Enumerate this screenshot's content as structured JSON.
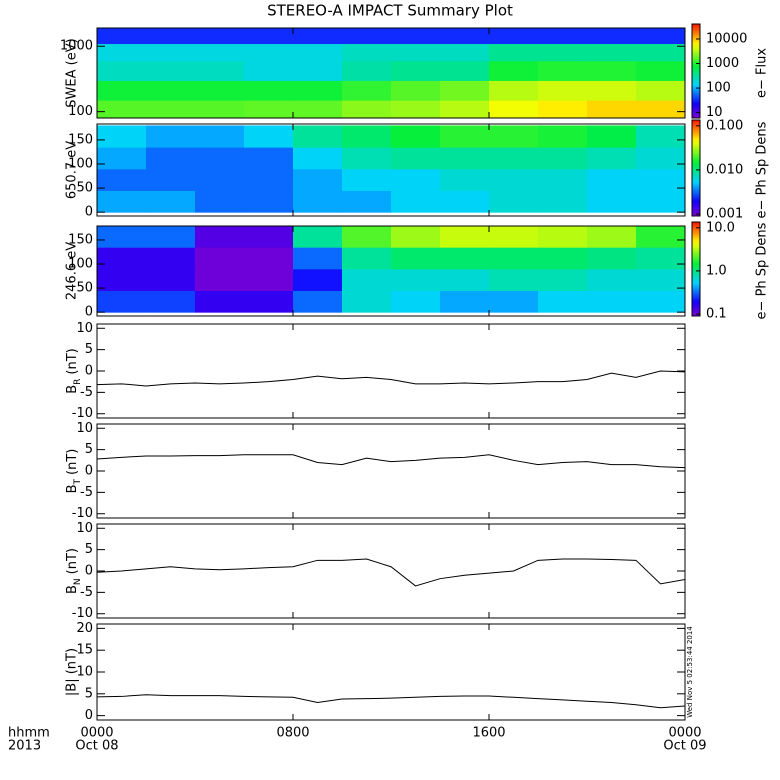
{
  "chart_data": [
    {
      "type": "heatmap",
      "title": "STEREO-A IMPACT Summary Plot",
      "ylabel": "SWEA (eV)",
      "ylog": true,
      "xlim": [
        0,
        24
      ],
      "ylim": [
        80,
        1900
      ],
      "yticks": [
        100,
        1000
      ],
      "x_edges": [
        0,
        2,
        4,
        6,
        8,
        10,
        12,
        14,
        16,
        18,
        20,
        22,
        24
      ],
      "y_edges": [
        80,
        150,
        300,
        600,
        1100,
        1900
      ],
      "z": [
        [
          1200,
          1200,
          1200,
          1300,
          1300,
          1800,
          2000,
          2500,
          4000,
          5000,
          6000,
          6000
        ],
        [
          700,
          700,
          700,
          700,
          700,
          900,
          1200,
          1500,
          2500,
          3000,
          3000,
          2500
        ],
        [
          200,
          200,
          200,
          150,
          150,
          250,
          300,
          300,
          700,
          800,
          800,
          700
        ],
        [
          150,
          150,
          150,
          150,
          150,
          200,
          200,
          200,
          300,
          300,
          300,
          300
        ],
        [
          30,
          30,
          30,
          30,
          30,
          30,
          30,
          30,
          30,
          30,
          30,
          30
        ]
      ],
      "clog": true,
      "clim": [
        6,
        28000
      ],
      "cticks": [
        10,
        100,
        1000,
        10000
      ],
      "clabel": "e− Flux"
    },
    {
      "type": "heatmap",
      "ylabel": "650.7 eV",
      "xlim": [
        0,
        24
      ],
      "ylim": [
        -8,
        183
      ],
      "yticks": [
        0,
        50,
        100,
        150
      ],
      "x_edges": [
        0,
        2,
        4,
        6,
        8,
        10,
        12,
        14,
        16,
        18,
        20,
        22,
        24
      ],
      "y_edges": [
        0,
        45,
        90,
        135,
        180
      ],
      "z": [
        [
          0.004,
          0.004,
          0.003,
          0.003,
          0.004,
          0.004,
          0.005,
          0.005,
          0.006,
          0.006,
          0.005,
          0.005
        ],
        [
          0.003,
          0.003,
          0.003,
          0.003,
          0.004,
          0.005,
          0.005,
          0.006,
          0.006,
          0.006,
          0.005,
          0.005
        ],
        [
          0.004,
          0.003,
          0.003,
          0.003,
          0.005,
          0.007,
          0.008,
          0.008,
          0.008,
          0.008,
          0.007,
          0.006
        ],
        [
          0.005,
          0.004,
          0.004,
          0.005,
          0.008,
          0.01,
          0.013,
          0.015,
          0.015,
          0.014,
          0.012,
          0.007
        ]
      ],
      "clog": true,
      "clim": [
        0.0009,
        0.11
      ],
      "cticks": [
        {
          "value": 0.1,
          "label": "0.100"
        },
        {
          "value": 0.01,
          "label": "0.010"
        },
        0.001
      ],
      "clabel": "e− Ph Sp Dens"
    },
    {
      "type": "heatmap",
      "ylabel": "246.6 eV",
      "xlim": [
        0,
        24
      ],
      "ylim": [
        -8,
        179
      ],
      "yticks": [
        0,
        50,
        100,
        150
      ],
      "x_edges": [
        0,
        2,
        4,
        6,
        8,
        10,
        12,
        14,
        16,
        18,
        20,
        22,
        24
      ],
      "y_edges": [
        0,
        45,
        90,
        135,
        180
      ],
      "z": [
        [
          0.25,
          0.25,
          0.15,
          0.15,
          0.3,
          0.6,
          0.5,
          0.4,
          0.4,
          0.5,
          0.5,
          0.5
        ],
        [
          0.15,
          0.15,
          0.1,
          0.1,
          0.2,
          0.6,
          0.6,
          0.6,
          0.7,
          0.7,
          0.6,
          0.6
        ],
        [
          0.15,
          0.15,
          0.1,
          0.1,
          0.3,
          0.8,
          1.0,
          1.0,
          1.0,
          1.0,
          0.9,
          0.8
        ],
        [
          0.3,
          0.3,
          0.12,
          0.12,
          0.8,
          1.8,
          2.5,
          3,
          3,
          2.8,
          2.5,
          1.5
        ]
      ],
      "clog": true,
      "clim": [
        0.09,
        11
      ],
      "cticks": [
        {
          "value": 10,
          "label": "10.0"
        },
        {
          "value": 1,
          "label": "1.0"
        },
        0.1
      ],
      "clabel": "e− Ph Sp Dens"
    },
    {
      "type": "line",
      "ylabel": {
        "base": "B",
        "sub": "R",
        "unit": "(nT)"
      },
      "xlim": [
        0,
        24
      ],
      "ylim": [
        -11,
        11
      ],
      "yticks": [
        10,
        5,
        0,
        -5,
        -10
      ],
      "color": "#000000",
      "x": [
        0,
        1,
        2,
        3,
        4,
        5,
        6,
        7,
        8,
        9,
        10,
        11,
        12,
        13,
        14,
        15,
        16,
        17,
        18,
        19,
        20,
        21,
        22,
        23,
        24
      ],
      "values": [
        -3.2,
        -3,
        -3.5,
        -3,
        -2.8,
        -3,
        -2.8,
        -2.5,
        -2,
        -1.2,
        -1.8,
        -1.5,
        -2,
        -3,
        -3,
        -2.8,
        -3,
        -2.8,
        -2.5,
        -2.5,
        -2,
        -0.5,
        -1.5,
        0,
        -0.2
      ]
    },
    {
      "type": "line",
      "ylabel": {
        "base": "B",
        "sub": "T",
        "unit": "(nT)"
      },
      "xlim": [
        0,
        24
      ],
      "ylim": [
        -11,
        11
      ],
      "yticks": [
        10,
        5,
        0,
        -5,
        -10
      ],
      "color": "#000000",
      "x": [
        0,
        1,
        2,
        3,
        4,
        5,
        6,
        7,
        8,
        9,
        10,
        11,
        12,
        13,
        14,
        15,
        16,
        17,
        18,
        19,
        20,
        21,
        22,
        23,
        24
      ],
      "values": [
        2.8,
        3.2,
        3.5,
        3.5,
        3.6,
        3.6,
        3.8,
        3.8,
        3.8,
        2,
        1.5,
        3,
        2.2,
        2.5,
        3,
        3.2,
        3.8,
        2.5,
        1.5,
        2,
        2.2,
        1.5,
        1.5,
        1,
        0.8
      ]
    },
    {
      "type": "line",
      "ylabel": {
        "base": "B",
        "sub": "N",
        "unit": "(nT)"
      },
      "xlim": [
        0,
        24
      ],
      "ylim": [
        -11,
        11
      ],
      "yticks": [
        10,
        5,
        0,
        -5,
        -10
      ],
      "color": "#000000",
      "x": [
        0,
        1,
        2,
        3,
        4,
        5,
        6,
        7,
        8,
        9,
        10,
        11,
        12,
        13,
        14,
        15,
        16,
        17,
        18,
        19,
        20,
        21,
        22,
        23,
        24
      ],
      "values": [
        -0.3,
        0,
        0.5,
        1,
        0.5,
        0.3,
        0.5,
        0.8,
        1,
        2.5,
        2.5,
        2.8,
        1,
        -3.5,
        -1.8,
        -1,
        -0.5,
        0,
        2.5,
        2.8,
        2.8,
        2.7,
        2.5,
        -3,
        -2
      ]
    },
    {
      "type": "line",
      "ylabel": "|B| (nT)",
      "xlim": [
        0,
        24
      ],
      "ylim": [
        -1,
        21
      ],
      "yticks": [
        20,
        15,
        10,
        5,
        0
      ],
      "color": "#000000",
      "x": [
        0,
        1,
        2,
        3,
        4,
        5,
        6,
        7,
        8,
        9,
        10,
        11,
        12,
        13,
        14,
        15,
        16,
        17,
        18,
        19,
        20,
        21,
        22,
        23,
        24
      ],
      "values": [
        4.3,
        4.4,
        4.8,
        4.6,
        4.6,
        4.6,
        4.4,
        4.3,
        4.2,
        3,
        3.8,
        3.9,
        4,
        4.2,
        4.4,
        4.5,
        4.5,
        4.2,
        3.9,
        3.6,
        3.3,
        3,
        2.5,
        1.8,
        2.2
      ],
      "xticks": [
        {
          "value": 0,
          "label": "0000"
        },
        {
          "value": 8,
          "label": "0800"
        },
        {
          "value": 16,
          "label": "1600"
        },
        {
          "value": 24,
          "label": "0000"
        }
      ],
      "date_labels": [
        {
          "value": 0,
          "label": "Oct 08"
        },
        {
          "value": 24,
          "label": "Oct 09"
        }
      ],
      "xlabel": "hhmm",
      "year_label": "2013",
      "timestamp": "Wed Nov  5 02:53:44 2014"
    }
  ]
}
